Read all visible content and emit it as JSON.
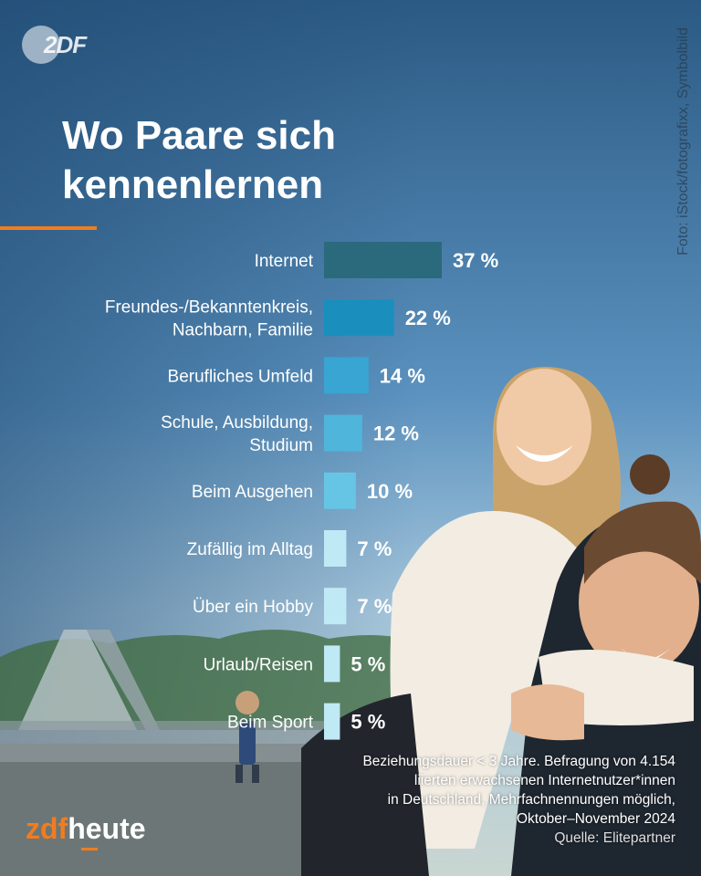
{
  "header": {
    "logo_text": "2DF",
    "title_line1": "Wo Paare sich",
    "title_line2": "kennenlernen",
    "photo_credit": "Foto: iStock/fotografixx, Symbolbild"
  },
  "chart_data": {
    "type": "bar",
    "orientation": "horizontal",
    "title": "Wo Paare sich kennenlernen",
    "categories": [
      [
        "Internet"
      ],
      [
        "Freundes-/Bekanntenkreis,",
        "Nachbarn, Familie"
      ],
      [
        "Berufliches Umfeld"
      ],
      [
        "Schule, Ausbildung,",
        "Studium"
      ],
      [
        "Beim Ausgehen"
      ],
      [
        "Zufällig im Alltag"
      ],
      [
        "Über ein Hobby"
      ],
      [
        "Urlaub/Reisen"
      ],
      [
        "Beim Sport"
      ]
    ],
    "values": [
      37,
      22,
      14,
      12,
      10,
      7,
      7,
      5,
      5
    ],
    "value_labels": [
      "37 %",
      "22 %",
      "14 %",
      "12 %",
      "10 %",
      "7 %",
      "7 %",
      "5 %",
      "5 %"
    ],
    "bar_colors": [
      "#2b6a7d",
      "#1a8fbd",
      "#38a5d2",
      "#4fb5db",
      "#66c5e5",
      "#bfe9f5",
      "#bfe9f5",
      "#bfe9f5",
      "#bfe9f5"
    ],
    "xlim": [
      0,
      37
    ],
    "grid": false
  },
  "footnote": {
    "line1": "Beziehungsdauer < 3 Jahre. Befragung von 4.154",
    "line2": "liierten erwachsenen Internetnutzer*innen",
    "line3": "in Deutschland, Mehrfachnennungen möglich,",
    "line4": "Oktober–November 2024",
    "source": "Quelle: Elitepartner"
  },
  "brand": {
    "zdf": "zdf",
    "heute": "heute"
  },
  "colors": {
    "accent": "#f07d1e",
    "text": "#ffffff"
  }
}
